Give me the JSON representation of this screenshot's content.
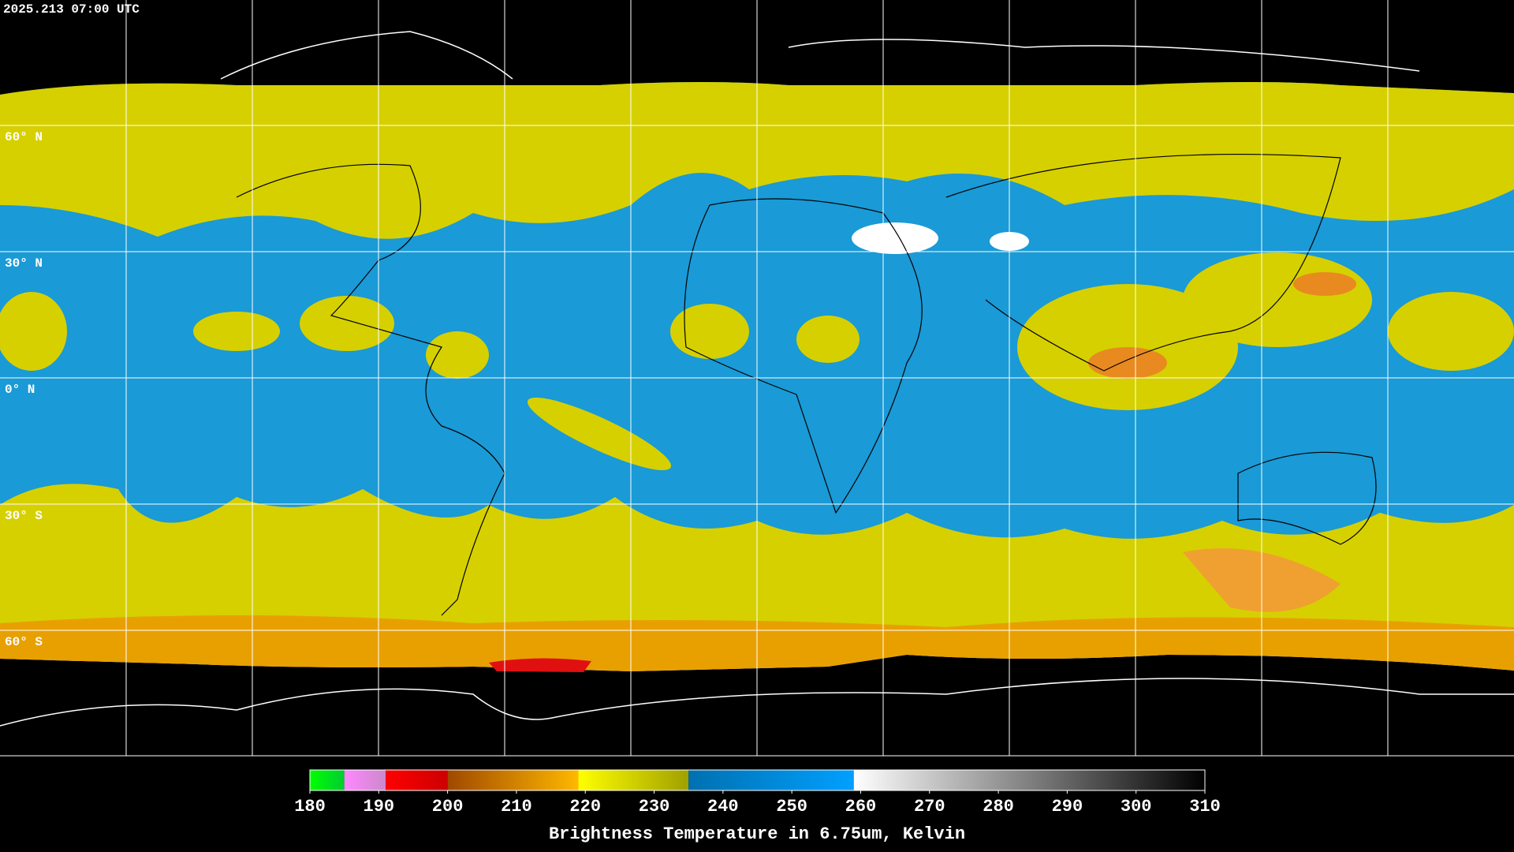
{
  "timestamp": "2025.213 07:00 UTC",
  "latitude_labels": [
    "60° N",
    "30° N",
    "0° N",
    "30° S",
    "60° S"
  ],
  "colorbar": {
    "title": "Brightness Temperature in 6.75um, Kelvin",
    "range": [
      180,
      310
    ],
    "ticks": [
      180,
      190,
      200,
      210,
      220,
      230,
      240,
      250,
      260,
      270,
      280,
      290,
      300,
      310
    ],
    "segments": [
      {
        "range": [
          180,
          185
        ],
        "colors": [
          "#00ff00",
          "#00cc33"
        ]
      },
      {
        "range": [
          185,
          191
        ],
        "colors": [
          "#ff88ff",
          "#cc88cc"
        ]
      },
      {
        "range": [
          191,
          200
        ],
        "colors": [
          "#ff0000",
          "#cc0000"
        ]
      },
      {
        "range": [
          200,
          219
        ],
        "colors": [
          "#a04800",
          "#ffb800"
        ]
      },
      {
        "range": [
          219,
          235
        ],
        "colors": [
          "#ffff00",
          "#a0a000"
        ]
      },
      {
        "range": [
          235,
          259
        ],
        "colors": [
          "#0070b0",
          "#00a0ff"
        ]
      },
      {
        "range": [
          259,
          310
        ],
        "colors": [
          "#ffffff",
          "#000000"
        ]
      }
    ]
  }
}
